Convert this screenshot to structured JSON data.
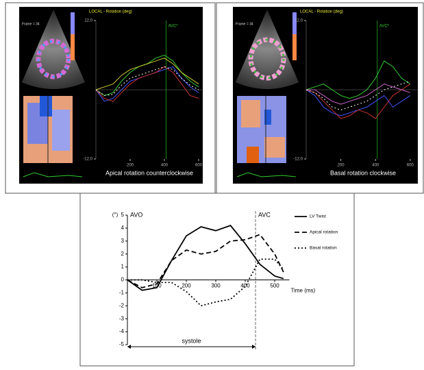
{
  "chart_data": [
    {
      "type": "line",
      "header": "LOCAL - Rotation (deg)",
      "frame": "Frame = 34",
      "caption": "Apical rotation counterclockwise",
      "markers": [
        {
          "label": "AVC*",
          "x": 410
        }
      ],
      "x": [
        0,
        50,
        100,
        150,
        200,
        250,
        300,
        350,
        400,
        450,
        500,
        550,
        600
      ],
      "xlim": [
        0,
        620
      ],
      "xticks": [
        200,
        400,
        600
      ],
      "ylim": [
        -12,
        12
      ],
      "yticks": [
        {
          "value": 12,
          "label": "12.0"
        },
        {
          "value": -12,
          "label": "-12.0"
        }
      ],
      "series": [
        {
          "color": "#33cc33",
          "dash": "solid",
          "values": [
            0,
            -1,
            -0.5,
            1.5,
            3,
            4,
            4.5,
            5.5,
            6,
            5,
            3,
            1.5,
            0.5
          ]
        },
        {
          "color": "#4455ff",
          "dash": "solid",
          "values": [
            0,
            -2,
            -1.5,
            0,
            1.5,
            2,
            2.5,
            3,
            3.5,
            4,
            2,
            0.5,
            -0.5
          ]
        },
        {
          "color": "#cc3333",
          "dash": "solid",
          "values": [
            0,
            -1.5,
            -2,
            -0.5,
            1,
            2,
            2.5,
            3,
            4,
            3,
            1,
            -1,
            -1.5
          ]
        },
        {
          "color": "#cccc33",
          "dash": "solid",
          "values": [
            0,
            0.5,
            1,
            2.5,
            3.5,
            4,
            4.5,
            5,
            5.5,
            4.5,
            3,
            2,
            1
          ]
        },
        {
          "color": "#ffffff",
          "dash": "dotted",
          "values": [
            0,
            -1,
            -0.8,
            0.8,
            2,
            2.5,
            3,
            3.5,
            4,
            3.5,
            2,
            0.8,
            0
          ]
        }
      ]
    },
    {
      "type": "line",
      "header": "LOCAL - Rotation (deg)",
      "frame": "Frame = 34",
      "caption": "Basal rotation clockwise",
      "markers": [
        {
          "label": "AVC*",
          "x": 410
        }
      ],
      "x": [
        0,
        50,
        100,
        150,
        200,
        250,
        300,
        350,
        400,
        450,
        500,
        550,
        600
      ],
      "xlim": [
        0,
        640
      ],
      "xticks": [
        200,
        400,
        600
      ],
      "ylim": [
        -12,
        12
      ],
      "yticks": [
        {
          "value": 12,
          "label": "12.0"
        },
        {
          "value": -12,
          "label": "-12.0"
        }
      ],
      "series": [
        {
          "color": "#33cc33",
          "dash": "solid",
          "values": [
            0,
            0.5,
            1,
            0,
            -1,
            -1.5,
            -1,
            0,
            2,
            5,
            4,
            2,
            1
          ]
        },
        {
          "color": "#4455ff",
          "dash": "solid",
          "values": [
            0,
            -1,
            -3,
            -4,
            -4.5,
            -4,
            -3.5,
            -3,
            -2,
            -1,
            -3,
            -2,
            -1
          ]
        },
        {
          "color": "#cc3333",
          "dash": "solid",
          "values": [
            0,
            -0.5,
            -2,
            -3.5,
            -5,
            -4.5,
            -3.5,
            -4,
            -5,
            -3,
            -1,
            0,
            1
          ]
        },
        {
          "color": "#cc66cc",
          "dash": "solid",
          "values": [
            0,
            0,
            -1,
            -2,
            -2.5,
            -2,
            -1.5,
            -1,
            0,
            1,
            0.5,
            0,
            -0.5
          ]
        },
        {
          "color": "#ffffff",
          "dash": "dotted",
          "values": [
            0,
            -0.5,
            -1.5,
            -3,
            -3.5,
            -3,
            -2.5,
            -2,
            -1,
            0,
            0.5,
            1,
            1.5
          ]
        }
      ]
    },
    {
      "type": "line",
      "ylabel": "(°)",
      "xlabel": "Time (ms)",
      "span_label": "systole",
      "markers": [
        {
          "label": "AVO",
          "x": 0
        },
        {
          "label": "AVC",
          "x": 435
        }
      ],
      "x": [
        0,
        50,
        100,
        150,
        200,
        250,
        300,
        350,
        400,
        450,
        500,
        530
      ],
      "xlim": [
        0,
        550
      ],
      "xticks": [
        100,
        200,
        300,
        400,
        500
      ],
      "ylim": [
        -5,
        5
      ],
      "yticks": [
        -5,
        -4,
        -3,
        -2,
        -1,
        0,
        1,
        2,
        3,
        4,
        5
      ],
      "series": [
        {
          "name": "LV Twist",
          "color": "#000000",
          "dash": "solid",
          "values": [
            0,
            -0.8,
            -0.6,
            1.5,
            3.4,
            4.1,
            3.8,
            4.2,
            2.8,
            1.2,
            0.3,
            0.1
          ]
        },
        {
          "name": "Apical rotation",
          "color": "#000000",
          "dash": "dashed",
          "values": [
            0,
            -0.6,
            -0.3,
            1.5,
            2.3,
            2.0,
            2.2,
            3.0,
            3.1,
            3.5,
            2.0,
            0.6
          ]
        },
        {
          "name": "Basal rotation",
          "color": "#000000",
          "dash": "dotted",
          "values": [
            0,
            0,
            -0.2,
            -0.2,
            -0.9,
            -2.0,
            -1.7,
            -1.5,
            -0.5,
            1.6,
            1.6,
            0.8
          ]
        }
      ]
    }
  ]
}
